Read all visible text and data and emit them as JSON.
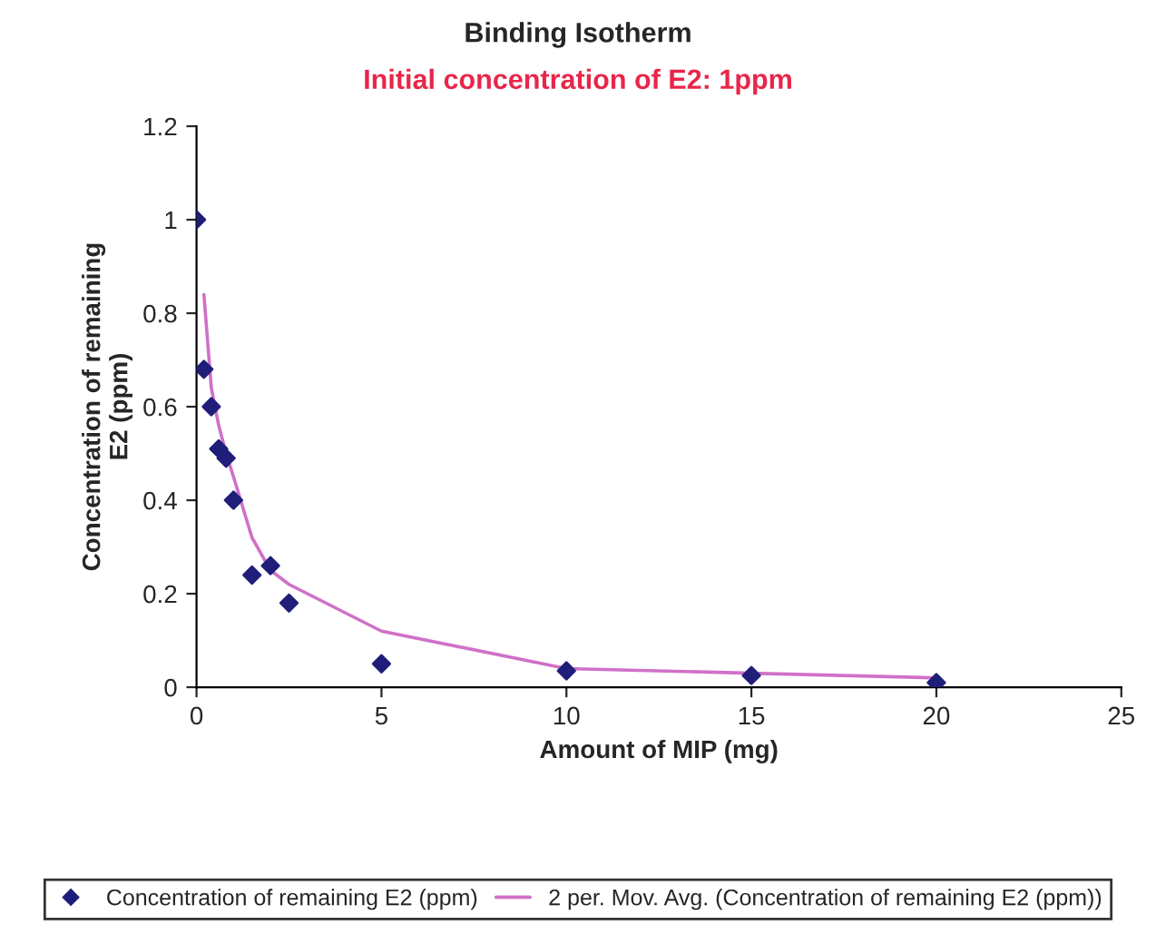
{
  "chart_data": {
    "type": "scatter",
    "title": "Binding Isotherm",
    "subtitle": "Initial concentration of E2: 1ppm",
    "xlabel": "Amount of MIP (mg)",
    "ylabel": "Concentration of remaining\nE2 (ppm)",
    "series": [
      {
        "name": "Concentration of remaining E2 (ppm)",
        "color": "#1f1f7a",
        "marker": "diamond",
        "x": [
          0,
          0.2,
          0.4,
          0.6,
          0.8,
          1,
          1.5,
          2,
          2.5,
          5,
          10,
          15,
          20
        ],
        "values": [
          1.0,
          0.68,
          0.6,
          0.51,
          0.49,
          0.4,
          0.24,
          0.26,
          0.18,
          0.05,
          0.035,
          0.025,
          0.01
        ]
      },
      {
        "name": "2 per. Mov. Avg. (Concentration of remaining E2 (ppm))",
        "type": "line",
        "color": "#d070c8",
        "line_style": "solid",
        "x": [
          0.2,
          0.4,
          0.6,
          0.8,
          1,
          1.5,
          2,
          2.5,
          5,
          10,
          15,
          20
        ],
        "values": [
          0.84,
          0.64,
          0.56,
          0.5,
          0.45,
          0.32,
          0.25,
          0.22,
          0.12,
          0.04,
          0.03,
          0.02
        ]
      }
    ],
    "xlim": [
      0,
      25
    ],
    "xticks": [
      0,
      5,
      10,
      15,
      20,
      25
    ],
    "ylim": [
      0,
      1.2
    ],
    "yticks": [
      0,
      0.2,
      0.4,
      0.6,
      0.8,
      1,
      1.2
    ],
    "grid": false,
    "legend": "bottom"
  }
}
